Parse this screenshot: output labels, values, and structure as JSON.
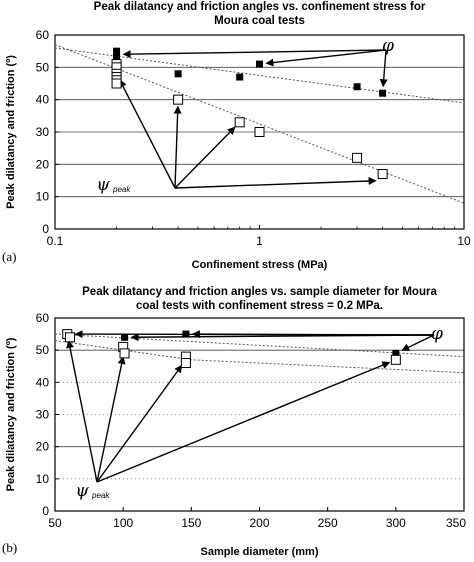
{
  "chart_data": [
    {
      "type": "scatter",
      "panel_label": "(a)",
      "title_lines": [
        "Peak dilatancy and friction angles vs. confinement stress for",
        "Moura coal tests"
      ],
      "xlabel": "Confinement stress (MPa)",
      "ylabel": "Peak dilatancy and friction (º)",
      "xscale": "log",
      "xlim": [
        0.1,
        10
      ],
      "ylim": [
        0,
        60
      ],
      "xticks": [
        0.1,
        1,
        10
      ],
      "xtick_labels": [
        "0.1",
        "1",
        "10"
      ],
      "yticks": [
        0,
        10,
        20,
        30,
        40,
        50,
        60
      ],
      "ytick_labels": [
        "0",
        "10",
        "20",
        "30",
        "40",
        "50",
        "60"
      ],
      "grid_y_solid": [
        10,
        20,
        30,
        40,
        50
      ],
      "series": [
        {
          "marker": "filled-square",
          "x": [
            0.2,
            0.2,
            0.2,
            0.2,
            0.2,
            0.2,
            0.4,
            0.8,
            1.0,
            3.0,
            4.0
          ],
          "y": [
            55,
            54,
            53,
            51,
            50,
            49,
            48,
            47,
            51,
            44,
            42
          ]
        },
        {
          "marker": "open-square",
          "x": [
            0.2,
            0.2,
            0.2,
            0.2,
            0.2,
            0.2,
            0.4,
            0.8,
            1.0,
            3.0,
            4.0
          ],
          "y": [
            51,
            50,
            48,
            47,
            46,
            45,
            40,
            33,
            30,
            22,
            17
          ]
        }
      ],
      "trend_lines": [
        {
          "x": [
            0.1,
            10
          ],
          "y": [
            56,
            39
          ]
        },
        {
          "x": [
            0.1,
            10
          ],
          "y": [
            57,
            8
          ]
        }
      ],
      "annotations": [
        {
          "symbol": "φ",
          "arrows_to": [
            [
              0.2,
              54
            ],
            [
              1.0,
              51
            ],
            [
              4.0,
              42
            ]
          ]
        },
        {
          "symbol": "ψ",
          "subscript": "peak",
          "arrows_to": [
            [
              0.2,
              48
            ],
            [
              0.4,
              40
            ],
            [
              0.8,
              33
            ],
            [
              4.0,
              15
            ]
          ]
        }
      ]
    },
    {
      "type": "scatter",
      "panel_label": "(b)",
      "title_lines": [
        "Peak dilatancy and friction angles vs. sample diameter for Moura",
        "coal tests with confinement stress = 0.2 MPa."
      ],
      "xlabel": "Sample diameter (mm)",
      "ylabel": "Peak dilatancy and friction (º)",
      "xscale": "linear",
      "xlim": [
        50,
        350
      ],
      "ylim": [
        0,
        60
      ],
      "xticks": [
        50,
        100,
        150,
        200,
        250,
        300,
        350
      ],
      "xtick_labels": [
        "50",
        "100",
        "150",
        "200",
        "250",
        "300",
        "350"
      ],
      "yticks": [
        0,
        10,
        20,
        30,
        40,
        50,
        60
      ],
      "ytick_labels": [
        "0",
        "10",
        "20",
        "30",
        "40",
        "50",
        "60"
      ],
      "grid_y_solid": [
        20,
        50
      ],
      "grid_y_dashed": [
        10,
        30,
        40
      ],
      "series": [
        {
          "marker": "filled-square",
          "x": [
            60,
            61,
            101,
            146,
            300
          ],
          "y": [
            55,
            54,
            54,
            55,
            49
          ]
        },
        {
          "marker": "open-square",
          "x": [
            59,
            61,
            100,
            101,
            146,
            146,
            300
          ],
          "y": [
            55,
            54,
            51,
            49,
            48,
            46,
            47
          ]
        }
      ],
      "trend_lines": [
        {
          "x": [
            50,
            350
          ],
          "y": [
            55,
            48
          ]
        },
        {
          "x": [
            50,
            150,
            350
          ],
          "y": [
            53,
            47,
            43
          ]
        }
      ],
      "annotations": [
        {
          "symbol": "φ",
          "arrows_to": [
            [
              60,
              55
            ],
            [
              101,
              54
            ],
            [
              146,
              55
            ],
            [
              300,
              49
            ]
          ]
        },
        {
          "symbol": "ψ",
          "subscript": "peak",
          "arrows_to": [
            [
              59,
              55
            ],
            [
              101,
              50
            ],
            [
              146,
              47
            ],
            [
              300,
              47
            ]
          ]
        }
      ]
    }
  ]
}
